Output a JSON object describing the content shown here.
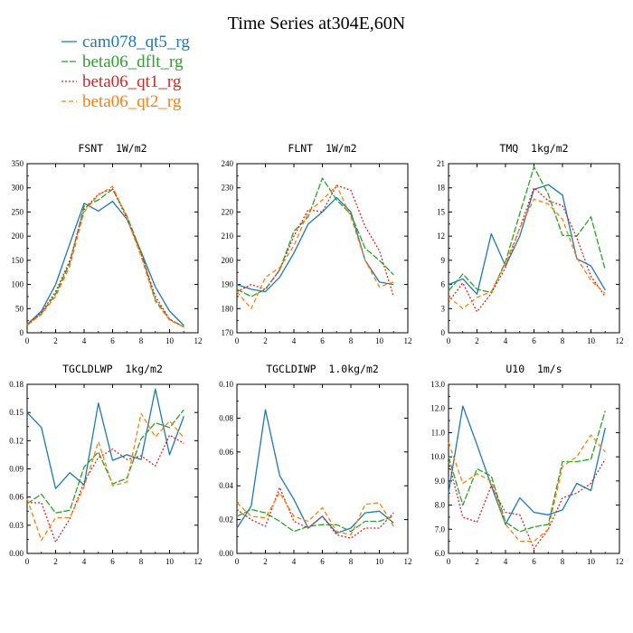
{
  "title": "Time Series at304E,60N",
  "legend": [
    {
      "name": "cam078_qt5_rg",
      "color": "#1f77b4",
      "dash": "solid"
    },
    {
      "name": "beta06_dflt_rg",
      "color": "#2ca02c",
      "dash": "long"
    },
    {
      "name": "beta06_qt1_rg",
      "color": "#d62728",
      "dash": "dot"
    },
    {
      "name": "beta06_qt2_rg",
      "color": "#ff7f0e",
      "dash": "dash"
    }
  ],
  "chart_data": [
    {
      "type": "line",
      "title": "FSNT  1W/m2",
      "xlim": [
        0,
        12
      ],
      "xticks": [
        0,
        2,
        4,
        6,
        8,
        10,
        12
      ],
      "ylim": [
        0,
        350
      ],
      "yticks": [
        0,
        50,
        100,
        150,
        200,
        250,
        300,
        350
      ],
      "ytick_labels": [
        "0",
        "50",
        "100",
        "150",
        "200",
        "250",
        "300",
        "350"
      ],
      "x": [
        0,
        1,
        2,
        3,
        4,
        5,
        6,
        7,
        8,
        9,
        10,
        11
      ],
      "series": [
        {
          "name": "cam078_qt5_rg",
          "values": [
            17,
            45,
            100,
            185,
            268,
            252,
            272,
            235,
            168,
            95,
            45,
            15
          ]
        },
        {
          "name": "beta06_dflt_rg",
          "values": [
            15,
            40,
            80,
            145,
            262,
            275,
            297,
            242,
            167,
            68,
            28,
            12
          ]
        },
        {
          "name": "beta06_qt1_rg",
          "values": [
            18,
            42,
            85,
            150,
            255,
            287,
            298,
            237,
            163,
            75,
            28,
            12
          ]
        },
        {
          "name": "beta06_qt2_rg",
          "values": [
            16,
            38,
            75,
            138,
            250,
            285,
            303,
            238,
            158,
            65,
            26,
            12
          ]
        }
      ]
    },
    {
      "type": "line",
      "title": "FLNT  1W/m2",
      "xlim": [
        0,
        12
      ],
      "xticks": [
        0,
        2,
        4,
        6,
        8,
        10,
        12
      ],
      "ylim": [
        170,
        240
      ],
      "yticks": [
        170,
        180,
        190,
        200,
        210,
        220,
        230,
        240
      ],
      "ytick_labels": [
        "170",
        "180",
        "190",
        "200",
        "210",
        "220",
        "230",
        "240"
      ],
      "x": [
        0,
        1,
        2,
        3,
        4,
        5,
        6,
        7,
        8,
        9,
        10,
        11
      ],
      "series": [
        {
          "name": "cam078_qt5_rg",
          "values": [
            190,
            188,
            187,
            193,
            203,
            215,
            220,
            226,
            220,
            200,
            191,
            190
          ]
        },
        {
          "name": "beta06_dflt_rg",
          "values": [
            188,
            185,
            188,
            196,
            212,
            218,
            234,
            225,
            219,
            205,
            200,
            194
          ]
        },
        {
          "name": "beta06_qt1_rg",
          "values": [
            187,
            190,
            188,
            196,
            210,
            221,
            220,
            231,
            229,
            214,
            204,
            185
          ]
        },
        {
          "name": "beta06_qt2_rg",
          "values": [
            187,
            180,
            193,
            197,
            206,
            220,
            225,
            231,
            218,
            200,
            189,
            191
          ]
        }
      ]
    },
    {
      "type": "line",
      "title": "TMQ  1kg/m2",
      "xlim": [
        0,
        12
      ],
      "xticks": [
        0,
        2,
        4,
        6,
        8,
        10,
        12
      ],
      "ylim": [
        0,
        21
      ],
      "yticks": [
        0,
        3,
        6,
        9,
        12,
        15,
        18,
        21
      ],
      "ytick_labels": [
        "0",
        "3",
        "6",
        "9",
        "12",
        "15",
        "18",
        "21"
      ],
      "x": [
        0,
        1,
        2,
        3,
        4,
        5,
        6,
        7,
        8,
        9,
        10,
        11
      ],
      "series": [
        {
          "name": "cam078_qt5_rg",
          "values": [
            6.0,
            6.7,
            4.8,
            12.3,
            8.3,
            12.0,
            17.8,
            18.4,
            17.1,
            9.2,
            8.3,
            5.3
          ]
        },
        {
          "name": "beta06_dflt_rg",
          "values": [
            5.2,
            7.3,
            5.4,
            5.0,
            8.8,
            14.8,
            20.6,
            17.2,
            12.1,
            12.0,
            14.4,
            7.8
          ]
        },
        {
          "name": "beta06_qt1_rg",
          "values": [
            3.8,
            6.2,
            2.6,
            4.9,
            8.1,
            13.0,
            18.0,
            16.4,
            15.8,
            11.8,
            7.0,
            4.5
          ]
        },
        {
          "name": "beta06_qt2_rg",
          "values": [
            4.5,
            3.0,
            4.4,
            5.1,
            8.6,
            13.0,
            16.6,
            16.0,
            14.1,
            9.3,
            6.5,
            4.9
          ]
        }
      ]
    },
    {
      "type": "line",
      "title": "TGCLDLWP  1kg/m2",
      "xlim": [
        0,
        12
      ],
      "xticks": [
        0,
        2,
        4,
        6,
        8,
        10,
        12
      ],
      "ylim": [
        0,
        0.18
      ],
      "yticks": [
        0,
        0.03,
        0.06,
        0.09,
        0.12,
        0.15,
        0.18
      ],
      "ytick_labels": [
        "0.00",
        "0.03",
        "0.06",
        "0.09",
        "0.12",
        "0.15",
        "0.18"
      ],
      "x": [
        0,
        1,
        2,
        3,
        4,
        5,
        6,
        7,
        8,
        9,
        10,
        11
      ],
      "series": [
        {
          "name": "cam078_qt5_rg",
          "values": [
            0.15,
            0.134,
            0.069,
            0.086,
            0.073,
            0.16,
            0.099,
            0.105,
            0.1,
            0.175,
            0.105,
            0.146
          ]
        },
        {
          "name": "beta06_dflt_rg",
          "values": [
            0.053,
            0.063,
            0.043,
            0.046,
            0.092,
            0.108,
            0.074,
            0.08,
            0.122,
            0.139,
            0.134,
            0.153
          ]
        },
        {
          "name": "beta06_qt1_rg",
          "values": [
            0.054,
            0.054,
            0.012,
            0.037,
            0.076,
            0.102,
            0.111,
            0.1,
            0.104,
            0.093,
            0.126,
            0.117
          ]
        },
        {
          "name": "beta06_qt2_rg",
          "values": [
            0.058,
            0.014,
            0.038,
            0.038,
            0.071,
            0.119,
            0.072,
            0.076,
            0.149,
            0.124,
            0.141,
            0.123
          ]
        }
      ]
    },
    {
      "type": "line",
      "title": "TGCLDIWP  1.0kg/m2",
      "xlim": [
        0,
        12
      ],
      "xticks": [
        0,
        2,
        4,
        6,
        8,
        10,
        12
      ],
      "ylim": [
        0,
        0.1
      ],
      "yticks": [
        0,
        0.02,
        0.04,
        0.06,
        0.08,
        0.1
      ],
      "ytick_labels": [
        "0.00",
        "0.02",
        "0.04",
        "0.06",
        "0.08",
        "0.10"
      ],
      "x": [
        0,
        1,
        2,
        3,
        4,
        5,
        6,
        7,
        8,
        9,
        10,
        11
      ],
      "series": [
        {
          "name": "cam078_qt5_rg",
          "values": [
            0.015,
            0.028,
            0.085,
            0.046,
            0.032,
            0.015,
            0.022,
            0.012,
            0.015,
            0.024,
            0.025,
            0.018
          ]
        },
        {
          "name": "beta06_dflt_rg",
          "values": [
            0.022,
            0.026,
            0.024,
            0.019,
            0.013,
            0.016,
            0.017,
            0.017,
            0.013,
            0.019,
            0.019,
            0.022
          ]
        },
        {
          "name": "beta06_qt1_rg",
          "values": [
            0.026,
            0.02,
            0.016,
            0.039,
            0.019,
            0.015,
            0.022,
            0.011,
            0.009,
            0.015,
            0.015,
            0.024
          ]
        },
        {
          "name": "beta06_qt2_rg",
          "values": [
            0.03,
            0.022,
            0.021,
            0.036,
            0.022,
            0.019,
            0.027,
            0.013,
            0.011,
            0.029,
            0.03,
            0.016
          ]
        }
      ]
    },
    {
      "type": "line",
      "title": "U10  1m/s",
      "xlim": [
        0,
        12
      ],
      "xticks": [
        0,
        2,
        4,
        6,
        8,
        10,
        12
      ],
      "ylim": [
        6,
        13
      ],
      "yticks": [
        6,
        7,
        8,
        9,
        10,
        11,
        12,
        13
      ],
      "ytick_labels": [
        "6.0",
        "7.0",
        "8.0",
        "9.0",
        "10.0",
        "11.0",
        "12.0",
        "13.0"
      ],
      "x": [
        0,
        1,
        2,
        3,
        4,
        5,
        6,
        7,
        8,
        9,
        10,
        11
      ],
      "series": [
        {
          "name": "cam078_qt5_rg",
          "values": [
            8.5,
            12.1,
            10.5,
            8.8,
            7.2,
            8.3,
            7.7,
            7.6,
            7.8,
            8.9,
            8.6,
            11.2
          ]
        },
        {
          "name": "beta06_dflt_rg",
          "values": [
            10.0,
            8.0,
            9.5,
            9.2,
            7.3,
            6.9,
            7.1,
            7.2,
            9.8,
            9.8,
            9.9,
            11.9
          ]
        },
        {
          "name": "beta06_qt1_rg",
          "values": [
            9.8,
            7.5,
            7.3,
            8.8,
            7.7,
            7.6,
            6.2,
            7.0,
            8.3,
            8.5,
            8.9,
            9.9
          ]
        },
        {
          "name": "beta06_qt2_rg",
          "values": [
            10.6,
            8.9,
            9.3,
            9.0,
            7.2,
            6.5,
            6.5,
            7.0,
            9.6,
            10.0,
            10.9,
            10.2
          ]
        }
      ]
    }
  ]
}
